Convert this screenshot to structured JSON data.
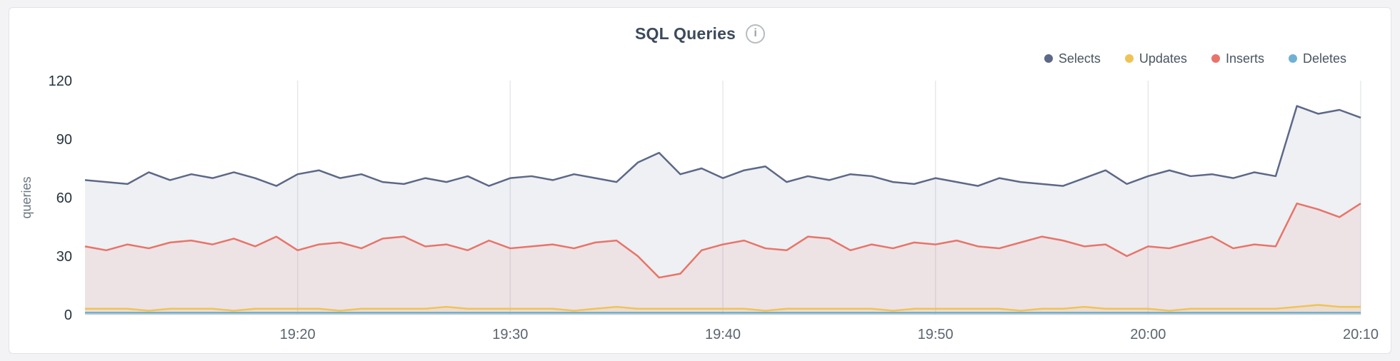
{
  "card": {
    "title": "SQL Queries",
    "info_icon": "i"
  },
  "legend": [
    {
      "label": "Selects",
      "color": "#5d6887"
    },
    {
      "label": "Updates",
      "color": "#efc356"
    },
    {
      "label": "Inserts",
      "color": "#e8746a"
    },
    {
      "label": "Deletes",
      "color": "#71b0d4"
    }
  ],
  "chart_data": {
    "type": "area",
    "title": "SQL Queries",
    "ylabel": "queries",
    "ylim": [
      0,
      120
    ],
    "y_ticks": [
      120,
      90,
      60,
      30,
      0
    ],
    "x_start": "19:10",
    "x_end": "20:10",
    "x_step_minutes": 1,
    "x_ticks": [
      {
        "label": "19:20",
        "index": 10
      },
      {
        "label": "19:30",
        "index": 20
      },
      {
        "label": "19:40",
        "index": 30
      },
      {
        "label": "19:50",
        "index": 40
      },
      {
        "label": "20:00",
        "index": 50
      },
      {
        "label": "20:10",
        "index": 60
      }
    ],
    "grid": "vertical-only",
    "legend_position": "top-right",
    "series": [
      {
        "name": "Selects",
        "color": "#5d6887",
        "fill": "rgba(93,104,135,0.10)",
        "values": [
          69,
          68,
          67,
          73,
          69,
          72,
          70,
          73,
          70,
          66,
          72,
          74,
          70,
          72,
          68,
          67,
          70,
          68,
          71,
          66,
          70,
          71,
          69,
          72,
          70,
          68,
          78,
          83,
          72,
          75,
          70,
          74,
          76,
          68,
          71,
          69,
          72,
          71,
          68,
          67,
          70,
          68,
          66,
          70,
          68,
          67,
          66,
          70,
          74,
          67,
          71,
          74,
          71,
          72,
          70,
          73,
          71,
          107,
          103,
          105,
          101
        ]
      },
      {
        "name": "Updates",
        "color": "#efc356",
        "fill": "rgba(239,195,86,0.15)",
        "values": [
          3,
          3,
          3,
          2,
          3,
          3,
          3,
          2,
          3,
          3,
          3,
          3,
          2,
          3,
          3,
          3,
          3,
          4,
          3,
          3,
          3,
          3,
          3,
          2,
          3,
          4,
          3,
          3,
          3,
          3,
          3,
          3,
          2,
          3,
          3,
          3,
          3,
          3,
          2,
          3,
          3,
          3,
          3,
          3,
          2,
          3,
          3,
          4,
          3,
          3,
          3,
          2,
          3,
          3,
          3,
          3,
          3,
          4,
          5,
          4,
          4
        ]
      },
      {
        "name": "Inserts",
        "color": "#e8746a",
        "fill": "rgba(232,116,106,0.10)",
        "values": [
          35,
          33,
          36,
          34,
          37,
          38,
          36,
          39,
          35,
          40,
          33,
          36,
          37,
          34,
          39,
          40,
          35,
          36,
          33,
          38,
          34,
          35,
          36,
          34,
          37,
          38,
          30,
          19,
          21,
          33,
          36,
          38,
          34,
          33,
          40,
          39,
          33,
          36,
          34,
          37,
          36,
          38,
          35,
          34,
          37,
          40,
          38,
          35,
          36,
          30,
          35,
          34,
          37,
          40,
          34,
          36,
          35,
          57,
          54,
          50,
          57
        ]
      },
      {
        "name": "Deletes",
        "color": "#71b0d4",
        "fill": "rgba(113,176,212,0.15)",
        "values": [
          1,
          1,
          1,
          1,
          1,
          1,
          1,
          1,
          1,
          1,
          1,
          1,
          1,
          1,
          1,
          1,
          1,
          1,
          1,
          1,
          1,
          1,
          1,
          1,
          1,
          1,
          1,
          1,
          1,
          1,
          1,
          1,
          1,
          1,
          1,
          1,
          1,
          1,
          1,
          1,
          1,
          1,
          1,
          1,
          1,
          1,
          1,
          1,
          1,
          1,
          1,
          1,
          1,
          1,
          1,
          1,
          1,
          1,
          1,
          1,
          1
        ]
      }
    ]
  }
}
